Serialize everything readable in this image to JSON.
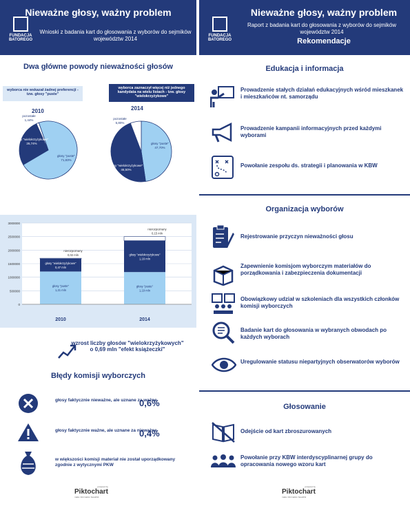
{
  "left": {
    "title": "Nieważne głosy, ważny problem",
    "logo": {
      "line1": "FUNDACJA",
      "line2": "BATOREGO",
      "line0": "FUNDACJA"
    },
    "subtitle": "Wnioski z badania kart do głosowania z wyborów do sejmików województw 2014",
    "reasons_heading": "Dwa główne powody nieważności głosów",
    "pill_left": "wyborca nie wskazał żadnej preferencji - tzw. głosy \"puste\"",
    "pill_right": "wyborca zaznaczył więcej niż jednego kandydata na wielu listach - tzw. głosy \"wielokrzyżykowe\"",
    "trend_text": "wzrost liczby głosów \"wielokrzyżykowych\" o 0,69 mln \"efekt książeczki\"",
    "errors_heading": "Błędy komisji wyborczych",
    "errors": [
      {
        "text": "głosy faktycznie nieważne, ale uznane za ważne",
        "value": "0,6%"
      },
      {
        "text": "głosy faktycznie ważne, ale uznane za nieważne",
        "value": "0,4%"
      },
      {
        "text": "w większości komisji materiał nie został uporządkowany zgodnie z wytycznymi PKW",
        "value": ""
      }
    ],
    "piktochart": {
      "powered": "powered by",
      "name": "Piktochart",
      "tag": "make information beautiful"
    }
  },
  "right": {
    "title": "Nieważne głosy, ważny problem",
    "logo": {
      "line1": "FUNDACJA",
      "line2": "BATOREGO",
      "line0": "FUNDACJA"
    },
    "subtitle": "Raport z badania kart do głosowania z wyborów do sejmików województw 2014",
    "rek": "Rekomendacje",
    "sections": [
      {
        "heading": "Edukacja i informacja",
        "items": [
          "Prowadzenie stałych działań edukacyjnych wśród mieszkanek i mieszkańców nt. samorządu",
          "Prowadzenie kampanii informacyjnych przed każdymi wyborami",
          "Powołanie zespołu ds. strategii i planowania w KBW"
        ]
      },
      {
        "heading": "Organizacja wyborów",
        "items": [
          "Rejestrowanie przyczyn nieważności głosu",
          "Zapewnienie komisjom wyborczym materiałów do porządkowania i zabezpieczenia dokumentacji",
          "Obowiązkowy udział w szkoleniach dla wszystkich członków komisji wyborczych",
          "Badanie kart do głosowania w wybranych obwodach po każdych wyborach",
          "Uregulowanie statusu niepartyjnych obserwatorów wyborów"
        ]
      },
      {
        "heading": "Głosowanie",
        "items": [
          "Odejście od kart zbroszurowanych",
          "Powołanie przy KBW interdyscyplinarnej grupy do opracowania nowego wzoru kart"
        ]
      }
    ],
    "piktochart": {
      "powered": "powered by",
      "name": "Piktochart",
      "tag": "make information beautiful"
    }
  },
  "colors": {
    "navy": "#233a7a",
    "light": "#9fd0f2",
    "pale": "#dbe8f6"
  },
  "chart_data": [
    {
      "type": "pie",
      "title": "2010",
      "labels": [
        "głosy \"puste\"",
        "głosy \"wielokrzyżykowe\"",
        "pozostałe"
      ],
      "values": [
        71.83,
        26.74,
        1.44
      ],
      "value_labels": [
        "71,83%",
        "26,74%",
        "1,44%"
      ]
    },
    {
      "type": "pie",
      "title": "2014",
      "labels": [
        "głosy \"puste\"",
        "głosy \"wielokrzyżykowe\"",
        "pozostałe"
      ],
      "values": [
        47.7,
        46.5,
        5.8
      ],
      "value_labels": [
        "47,70%",
        "46,50%",
        "5,80%"
      ]
    },
    {
      "type": "bar",
      "stacked": true,
      "categories": [
        "2010",
        "2014"
      ],
      "yticks": [
        "0",
        "500000",
        "1000000",
        "1500000",
        "2000000",
        "2500000",
        "3000000"
      ],
      "ylim": [
        0,
        3000000
      ],
      "grid": true,
      "series": [
        {
          "name": "głosy \"puste\"",
          "values": [
            1210000,
            1190000
          ],
          "labels": [
            "1,21 mln",
            "1,19 mln"
          ]
        },
        {
          "name": "głosy \"wielokrzyżykowe\"",
          "values": [
            470000,
            1160000
          ],
          "labels": [
            "0,47 mln",
            "1,16 mln"
          ]
        },
        {
          "name": "nierozpoznany",
          "values": [
            20000,
            150000
          ],
          "labels": [
            "0,02 mln",
            "0,15 mln"
          ]
        }
      ]
    }
  ]
}
